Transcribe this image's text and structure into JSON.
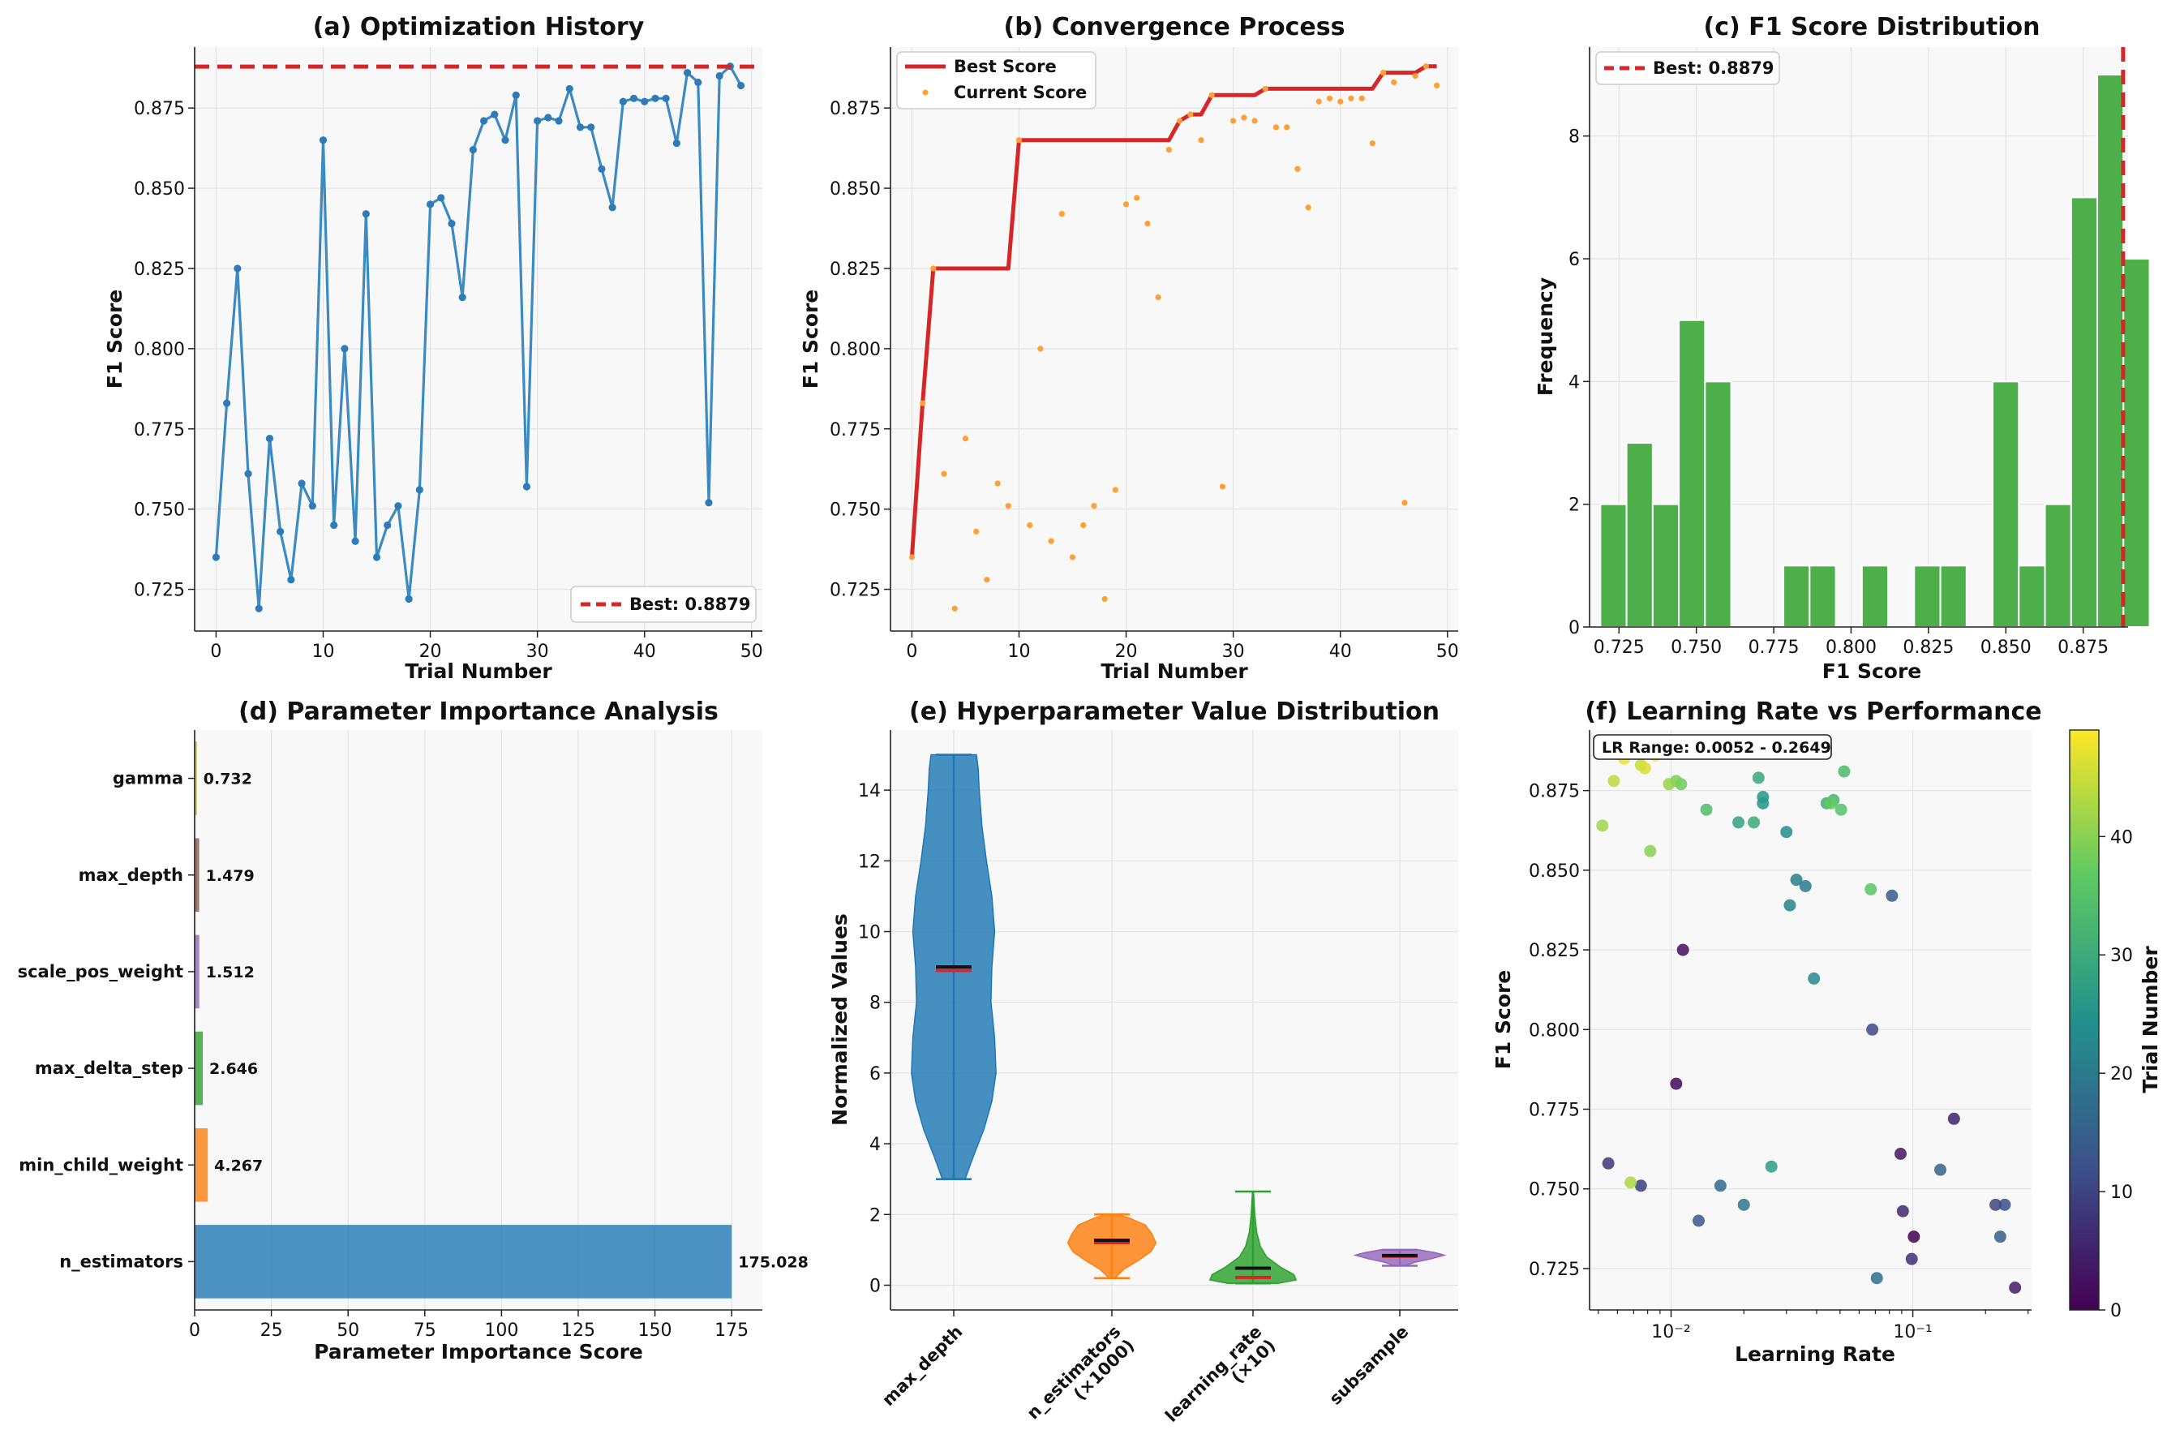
{
  "colors": {
    "line_blue": "#3b8bc2",
    "best_red": "#d62728",
    "orange": "#ff9f35",
    "green": "#4daf4a",
    "grid": "#e3e3e3",
    "panel_bg": "#f8f8f8"
  },
  "chart_data": [
    {
      "id": "a",
      "type": "line",
      "title": "(a) Optimization History",
      "xlabel": "Trial Number",
      "ylabel": "F1 Score",
      "xlim": [
        -2,
        51
      ],
      "ylim": [
        0.712,
        0.894
      ],
      "xticks": [
        0,
        10,
        20,
        30,
        40,
        50
      ],
      "xtick_labels": [
        "0",
        "10",
        "20",
        "30",
        "40",
        "50"
      ],
      "yticks": [
        0.725,
        0.75,
        0.775,
        0.8,
        0.825,
        0.85,
        0.875
      ],
      "ytick_labels": [
        "0.725",
        "0.750",
        "0.775",
        "0.800",
        "0.825",
        "0.850",
        "0.875"
      ],
      "x": [
        0,
        1,
        2,
        3,
        4,
        5,
        6,
        7,
        8,
        9,
        10,
        11,
        12,
        13,
        14,
        15,
        16,
        17,
        18,
        19,
        20,
        21,
        22,
        23,
        24,
        25,
        26,
        27,
        28,
        29,
        30,
        31,
        32,
        33,
        34,
        35,
        36,
        37,
        38,
        39,
        40,
        41,
        42,
        43,
        44,
        45,
        46,
        47,
        48,
        49
      ],
      "values": [
        0.735,
        0.783,
        0.825,
        0.761,
        0.719,
        0.772,
        0.743,
        0.728,
        0.758,
        0.751,
        0.865,
        0.745,
        0.8,
        0.74,
        0.842,
        0.735,
        0.745,
        0.751,
        0.722,
        0.756,
        0.845,
        0.847,
        0.839,
        0.816,
        0.862,
        0.871,
        0.873,
        0.865,
        0.879,
        0.757,
        0.871,
        0.872,
        0.871,
        0.881,
        0.869,
        0.869,
        0.856,
        0.844,
        0.877,
        0.878,
        0.877,
        0.878,
        0.878,
        0.864,
        0.886,
        0.883,
        0.752,
        0.885,
        0.888,
        0.882
      ],
      "best": 0.8879,
      "legend": [
        "Best: 0.8879"
      ],
      "legend_position": "lower-right"
    },
    {
      "id": "b",
      "type": "line",
      "title": "(b) Convergence Process",
      "xlabel": "Trial Number",
      "ylabel": "F1 Score",
      "xlim": [
        -2,
        51
      ],
      "ylim": [
        0.712,
        0.894
      ],
      "xticks": [
        0,
        10,
        20,
        30,
        40,
        50
      ],
      "xtick_labels": [
        "0",
        "10",
        "20",
        "30",
        "40",
        "50"
      ],
      "yticks": [
        0.725,
        0.75,
        0.775,
        0.8,
        0.825,
        0.85,
        0.875
      ],
      "ytick_labels": [
        "0.725",
        "0.750",
        "0.775",
        "0.800",
        "0.825",
        "0.850",
        "0.875"
      ],
      "series": [
        {
          "name": "Best Score",
          "style": "line",
          "values": [
            0.735,
            0.783,
            0.825,
            0.825,
            0.825,
            0.825,
            0.825,
            0.825,
            0.825,
            0.825,
            0.865,
            0.865,
            0.865,
            0.865,
            0.865,
            0.865,
            0.865,
            0.865,
            0.865,
            0.865,
            0.865,
            0.865,
            0.865,
            0.865,
            0.865,
            0.871,
            0.873,
            0.873,
            0.879,
            0.879,
            0.879,
            0.879,
            0.879,
            0.881,
            0.881,
            0.881,
            0.881,
            0.881,
            0.881,
            0.881,
            0.881,
            0.881,
            0.881,
            0.881,
            0.886,
            0.886,
            0.886,
            0.886,
            0.888,
            0.888
          ]
        },
        {
          "name": "Current Score",
          "style": "scatter",
          "values": [
            0.735,
            0.783,
            0.825,
            0.761,
            0.719,
            0.772,
            0.743,
            0.728,
            0.758,
            0.751,
            0.865,
            0.745,
            0.8,
            0.74,
            0.842,
            0.735,
            0.745,
            0.751,
            0.722,
            0.756,
            0.845,
            0.847,
            0.839,
            0.816,
            0.862,
            0.871,
            0.873,
            0.865,
            0.879,
            0.757,
            0.871,
            0.872,
            0.871,
            0.881,
            0.869,
            0.869,
            0.856,
            0.844,
            0.877,
            0.878,
            0.877,
            0.878,
            0.878,
            0.864,
            0.886,
            0.883,
            0.752,
            0.885,
            0.888,
            0.882
          ]
        }
      ],
      "legend": [
        "Best Score",
        "Current Score"
      ],
      "legend_position": "top-left"
    },
    {
      "id": "c",
      "type": "bar",
      "title": "(c) F1 Score Distribution",
      "xlabel": "F1 Score",
      "ylabel": "Frequency",
      "xlim": [
        0.7155,
        0.8895
      ],
      "ylim": [
        0,
        9.45
      ],
      "xticks": [
        0.725,
        0.75,
        0.775,
        0.8,
        0.825,
        0.85,
        0.875
      ],
      "xtick_labels": [
        "0.725",
        "0.750",
        "0.775",
        "0.800",
        "0.825",
        "0.850",
        "0.875"
      ],
      "yticks": [
        0,
        2,
        4,
        6,
        8
      ],
      "ytick_labels": [
        "0",
        "2",
        "4",
        "6",
        "8"
      ],
      "bin_start": 0.719,
      "bin_width": 0.00845,
      "counts": [
        2,
        3,
        2,
        5,
        4,
        0,
        0,
        1,
        1,
        0,
        1,
        0,
        1,
        1,
        0,
        4,
        1,
        2,
        7,
        9,
        6
      ],
      "best": 0.8879,
      "legend": [
        "Best: 0.8879"
      ],
      "legend_position": "top-left"
    },
    {
      "id": "d",
      "type": "bar",
      "orientation": "horizontal",
      "title": "(d) Parameter Importance Analysis",
      "xlabel": "Parameter Importance Score",
      "xlim": [
        0,
        185
      ],
      "xticks": [
        0,
        25,
        50,
        75,
        100,
        125,
        150,
        175
      ],
      "xtick_labels": [
        "0",
        "25",
        "50",
        "75",
        "100",
        "125",
        "150",
        "175"
      ],
      "categories": [
        "gamma",
        "max_depth",
        "scale_pos_weight",
        "max_delta_step",
        "min_child_weight",
        "n_estimators"
      ],
      "values": [
        0.732,
        1.479,
        1.512,
        2.646,
        4.267,
        175.028
      ],
      "value_labels": [
        "0.732",
        "1.479",
        "1.512",
        "2.646",
        "4.267",
        "175.028"
      ],
      "bar_colors": [
        "#bcbd22",
        "#8c564b",
        "#9467bd",
        "#2ca02c",
        "#ff7f0e",
        "#1f77b4"
      ]
    },
    {
      "id": "e",
      "type": "violin",
      "title": "(e) Hyperparameter Value Distribution",
      "ylabel": "Normalized Values",
      "ylim": [
        -0.7,
        15.7
      ],
      "yticks": [
        0,
        2,
        4,
        6,
        8,
        10,
        12,
        14
      ],
      "ytick_labels": [
        "0",
        "2",
        "4",
        "6",
        "8",
        "10",
        "12",
        "14"
      ],
      "categories": [
        "max_depth",
        "n_estimators\n(×1000)",
        "learning_rate\n(×10)",
        "subsample"
      ],
      "violins": [
        {
          "min": 3,
          "max": 15,
          "mean": 9.0,
          "median": 8.9,
          "color": "#1f77b4",
          "profile": [
            [
              3,
              0.25
            ],
            [
              3.6,
              0.42
            ],
            [
              4.4,
              0.66
            ],
            [
              5.2,
              0.84
            ],
            [
              6,
              0.93
            ],
            [
              7,
              0.9
            ],
            [
              8,
              0.82
            ],
            [
              9,
              0.84
            ],
            [
              10,
              0.9
            ],
            [
              11,
              0.84
            ],
            [
              12,
              0.72
            ],
            [
              13,
              0.62
            ],
            [
              14,
              0.56
            ],
            [
              14.6,
              0.54
            ],
            [
              15,
              0.5
            ]
          ]
        },
        {
          "min": 0.2,
          "max": 2.0,
          "mean": 1.27,
          "median": 1.2,
          "color": "#ff7f0e",
          "profile": [
            [
              0.2,
              0.06
            ],
            [
              0.45,
              0.26
            ],
            [
              0.7,
              0.58
            ],
            [
              0.95,
              0.86
            ],
            [
              1.2,
              0.97
            ],
            [
              1.45,
              0.88
            ],
            [
              1.7,
              0.74
            ],
            [
              1.9,
              0.38
            ],
            [
              2.0,
              0.12
            ]
          ]
        },
        {
          "min": 0.05,
          "max": 2.65,
          "mean": 0.48,
          "median": 0.22,
          "color": "#2ca02c",
          "profile": [
            [
              0.05,
              0.55
            ],
            [
              0.15,
              0.95
            ],
            [
              0.3,
              0.9
            ],
            [
              0.5,
              0.62
            ],
            [
              0.8,
              0.3
            ],
            [
              1.1,
              0.16
            ],
            [
              1.5,
              0.08
            ],
            [
              2.0,
              0.04
            ],
            [
              2.65,
              0.01
            ]
          ]
        },
        {
          "min": 0.55,
          "max": 1.0,
          "mean": 0.84,
          "median": 0.82,
          "color": "#9467bd",
          "profile": [
            [
              0.55,
              0.1
            ],
            [
              0.65,
              0.34
            ],
            [
              0.75,
              0.7
            ],
            [
              0.85,
              0.98
            ],
            [
              0.92,
              0.78
            ],
            [
              1.0,
              0.42
            ]
          ]
        }
      ]
    },
    {
      "id": "f",
      "type": "scatter",
      "title": "(f) Learning Rate vs Performance",
      "xlabel": "Learning Rate",
      "ylabel": "F1 Score",
      "xscale": "log",
      "xlim": [
        0.0046,
        0.31
      ],
      "ylim": [
        0.712,
        0.894
      ],
      "xtick_labels": [
        "10⁻²",
        "10⁻¹"
      ],
      "yticks": [
        0.725,
        0.75,
        0.775,
        0.8,
        0.825,
        0.85,
        0.875
      ],
      "ytick_labels": [
        "0.725",
        "0.750",
        "0.775",
        "0.800",
        "0.825",
        "0.850",
        "0.875"
      ],
      "annotation": "LR Range: 0.0052 - 0.2649",
      "colorbar": {
        "label": "Trial Number",
        "range": [
          0,
          49
        ],
        "ticks": [
          0,
          10,
          20,
          30,
          40
        ],
        "tick_labels": [
          "0",
          "10",
          "20",
          "30",
          "40"
        ]
      },
      "points": [
        [
          0.101,
          0.735
        ],
        [
          0.0105,
          0.783
        ],
        [
          0.0112,
          0.825
        ],
        [
          0.089,
          0.761
        ],
        [
          0.2649,
          0.719
        ],
        [
          0.148,
          0.772
        ],
        [
          0.091,
          0.743
        ],
        [
          0.099,
          0.728
        ],
        [
          0.0055,
          0.758
        ],
        [
          0.0075,
          0.751
        ],
        [
          0.22,
          0.745
        ],
        [
          0.068,
          0.8
        ],
        [
          0.24,
          0.745
        ],
        [
          0.013,
          0.74
        ],
        [
          0.082,
          0.842
        ],
        [
          0.23,
          0.735
        ],
        [
          0.13,
          0.756
        ],
        [
          0.016,
          0.751
        ],
        [
          0.071,
          0.722
        ],
        [
          0.02,
          0.745
        ],
        [
          0.036,
          0.845
        ],
        [
          0.033,
          0.847
        ],
        [
          0.031,
          0.839
        ],
        [
          0.039,
          0.816
        ],
        [
          0.03,
          0.862
        ],
        [
          0.024,
          0.871
        ],
        [
          0.024,
          0.873
        ],
        [
          0.026,
          0.757
        ],
        [
          0.019,
          0.865
        ],
        [
          0.023,
          0.879
        ],
        [
          0.022,
          0.865
        ],
        [
          0.044,
          0.871
        ],
        [
          0.047,
          0.872
        ],
        [
          0.052,
          0.881
        ],
        [
          0.014,
          0.869
        ],
        [
          0.0505,
          0.869
        ],
        [
          0.067,
          0.844
        ],
        [
          0.046,
          0.871
        ],
        [
          0.011,
          0.877
        ],
        [
          0.0105,
          0.878
        ],
        [
          0.0082,
          0.856
        ],
        [
          0.0098,
          0.877
        ],
        [
          0.0052,
          0.864
        ],
        [
          0.0068,
          0.752
        ],
        [
          0.0058,
          0.878
        ],
        [
          0.0075,
          0.883
        ],
        [
          0.0078,
          0.882
        ],
        [
          0.0081,
          0.887
        ],
        [
          0.0064,
          0.885
        ],
        [
          0.0086,
          0.886
        ]
      ]
    }
  ]
}
